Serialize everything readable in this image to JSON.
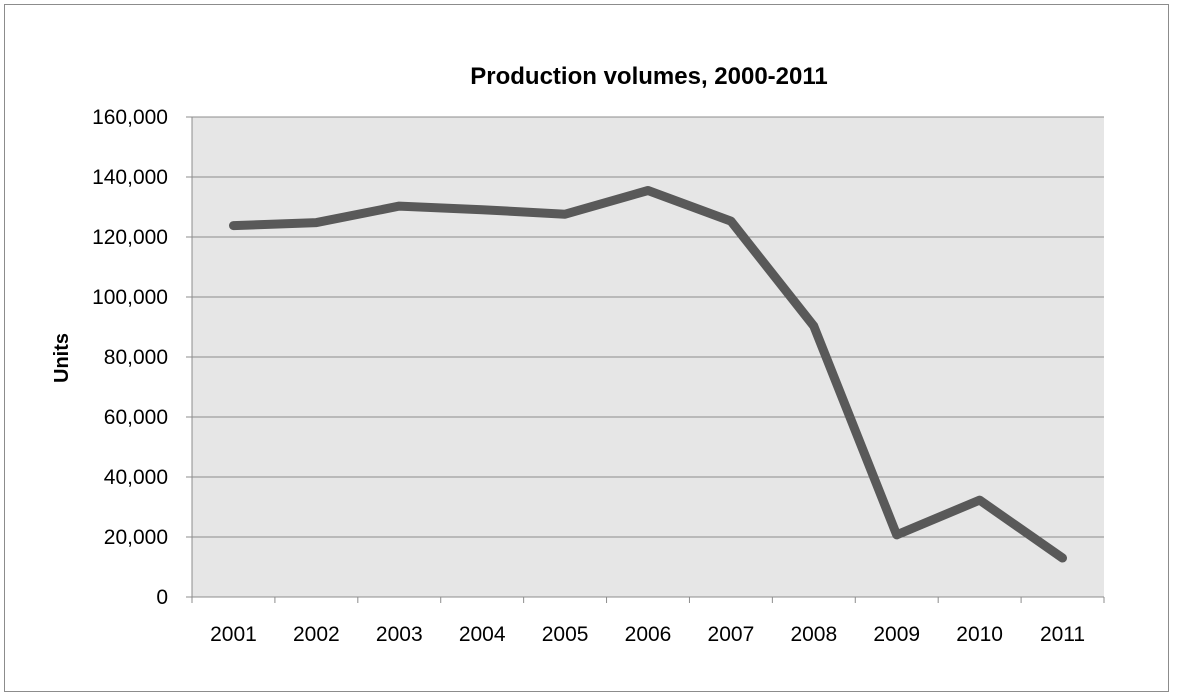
{
  "chart_data": {
    "type": "line",
    "title": "Production volumes, 2000-2011",
    "xlabel": "",
    "ylabel": "Units",
    "categories": [
      "2001",
      "2002",
      "2003",
      "2004",
      "2005",
      "2006",
      "2007",
      "2008",
      "2009",
      "2010",
      "2011"
    ],
    "series": [
      {
        "values": [
          123800,
          124800,
          130300,
          129100,
          127600,
          135500,
          125300,
          90300,
          20700,
          32300,
          13000
        ]
      }
    ],
    "ylim": [
      0,
      160000
    ],
    "yticks": [
      0,
      20000,
      40000,
      60000,
      80000,
      100000,
      120000,
      140000,
      160000
    ],
    "ytick_labels": [
      "0",
      "20,000",
      "40,000",
      "60,000",
      "80,000",
      "100,000",
      "120,000",
      "140,000",
      "160,000"
    ],
    "grid": true,
    "legend": "none",
    "colors": {
      "line": "#595959",
      "plot_background": "#e6e6e6",
      "gridline": "#8c8c8c",
      "border": "#8c8c8c"
    }
  }
}
